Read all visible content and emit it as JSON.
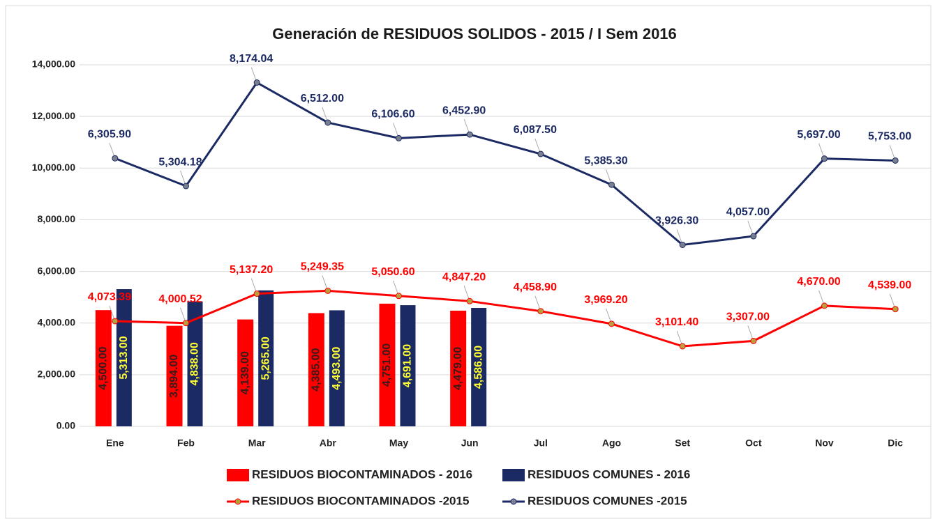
{
  "chart_data": {
    "type": "combo",
    "title": "Generación de RESIDUOS SOLIDOS - 2015 / I Sem 2016",
    "categories": [
      "Ene",
      "Feb",
      "Mar",
      "Abr",
      "May",
      "Jun",
      "Jul",
      "Ago",
      "Set",
      "Oct",
      "Nov",
      "Dic"
    ],
    "ylim": [
      0,
      14000
    ],
    "yticks": [
      {
        "value": 0,
        "label": "0.00"
      },
      {
        "value": 2000,
        "label": "2,000.00"
      },
      {
        "value": 4000,
        "label": "4,000.00"
      },
      {
        "value": 6000,
        "label": "6,000.00"
      },
      {
        "value": 8000,
        "label": "8,000.00"
      },
      {
        "value": 10000,
        "label": "10,000.00"
      },
      {
        "value": 12000,
        "label": "12,000.00"
      },
      {
        "value": 14000,
        "label": "14,000.00"
      }
    ],
    "grid": true,
    "stacked_lines": true,
    "series": [
      {
        "name": "RESIDUOS BIOCONTAMINADOS - 2016",
        "type": "bar",
        "color": "#ff0000",
        "label_color": "#3a1a1a",
        "values": [
          4500,
          3894,
          4139,
          4385,
          4751,
          4479,
          null,
          null,
          null,
          null,
          null,
          null
        ],
        "value_labels": [
          "4,500.00",
          "3,894.00",
          "4,139.00",
          "4,385.00",
          "4,751.00",
          "4,479.00",
          null,
          null,
          null,
          null,
          null,
          null
        ]
      },
      {
        "name": "RESIDUOS COMUNES - 2016",
        "type": "bar",
        "color": "#1c2a63",
        "label_color": "#ffff33",
        "values": [
          5313,
          4838,
          5265,
          4493,
          4691,
          4586,
          null,
          null,
          null,
          null,
          null,
          null
        ],
        "value_labels": [
          "5,313.00",
          "4,838.00",
          "5,265.00",
          "4,493.00",
          "4,691.00",
          "4,586.00",
          null,
          null,
          null,
          null,
          null,
          null
        ]
      },
      {
        "name": "RESIDUOS BIOCONTAMINADOS -2015",
        "type": "line",
        "color": "#ff0000",
        "marker_color": "#b8a040",
        "label_color": "#ff0000",
        "values": [
          4073.39,
          4000.52,
          5137.2,
          5249.35,
          5050.6,
          4847.2,
          4458.9,
          3969.2,
          3101.4,
          3307.0,
          4670.0,
          4539.0
        ],
        "value_labels": [
          "4,073.39",
          "4,000.52",
          "5,137.20",
          "5,249.35",
          "5,050.60",
          "4,847.20",
          "4,458.90",
          "3,969.20",
          "3,101.40",
          "3,307.00",
          "4,670.00",
          "4,539.00"
        ]
      },
      {
        "name": "RESIDUOS COMUNES -2015",
        "type": "line",
        "color": "#1c2a63",
        "marker_color": "#7a7f90",
        "label_color": "#1c2a63",
        "values": [
          6305.9,
          5304.18,
          8174.04,
          6512.0,
          6106.6,
          6452.9,
          6087.5,
          5385.3,
          3926.3,
          4057.0,
          5697.0,
          5753.0
        ],
        "value_labels": [
          "6,305.90",
          "5,304.18",
          "8,174.04",
          "6,512.00",
          "6,106.60",
          "6,452.90",
          "6,087.50",
          "5,385.30",
          "3,926.30",
          "4,057.00",
          "5,697.00",
          "5,753.00"
        ]
      }
    ]
  }
}
